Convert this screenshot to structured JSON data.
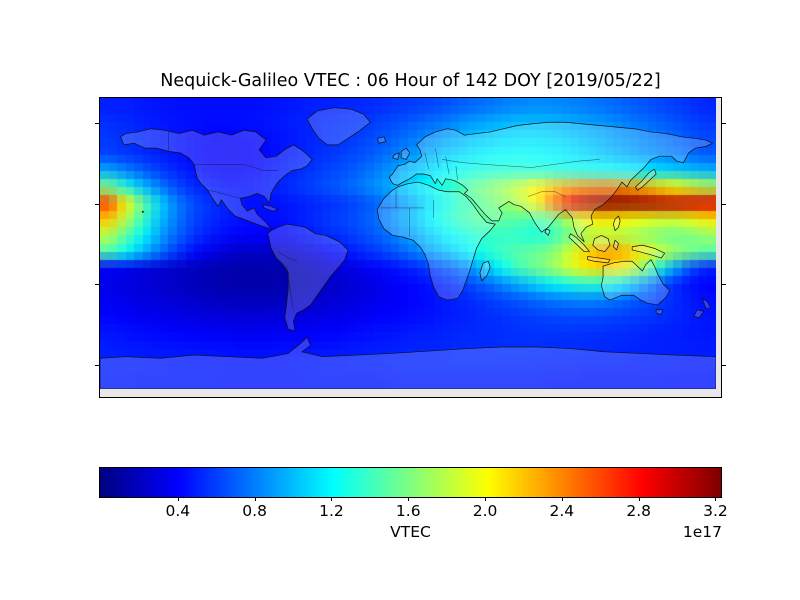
{
  "window": {
    "background": "#ffffff",
    "frame_color": "#000000"
  },
  "title": "Nequick-Galileo VTEC : 06 Hour of 142 DOY [2019/05/22]",
  "colorbar": {
    "label": "VTEC",
    "offset_text": "1e17",
    "tick_labels": [
      "0.4",
      "0.8",
      "1.2",
      "1.6",
      "2.0",
      "2.4",
      "2.8",
      "3.2"
    ],
    "tick_values": [
      0.4,
      0.8,
      1.2,
      1.6,
      2.0,
      2.4,
      2.8,
      3.2
    ]
  },
  "chart_data": {
    "type": "heatmap",
    "title": "Nequick-Galileo VTEC : 06 Hour of 142 DOY [2019/05/22]",
    "colormap": "jet",
    "colormap_stops": [
      "#00007f",
      "#0000ff",
      "#00ffff",
      "#7fff7f",
      "#ffff00",
      "#ff7f00",
      "#ff0000",
      "#7f0000"
    ],
    "basemap": "equirectangular world coastlines with country borders",
    "lon_range": [
      -180,
      180
    ],
    "lat_range": [
      90,
      -90
    ],
    "vmin": 0,
    "vmax": 3.234,
    "value_scale": "1e17",
    "colorbar_label": "VTEC",
    "colorbar_ticks": [
      0.4,
      0.8,
      1.2,
      1.6,
      2.0,
      2.4,
      2.8,
      3.2
    ],
    "colorbar_tick_labels": [
      "0.4",
      "0.8",
      "1.2",
      "1.6",
      "2.0",
      "2.4",
      "2.8",
      "3.2"
    ],
    "lon_col_start": -175,
    "lon_col_step": 10,
    "lat_row_centers": [
      85,
      75,
      65,
      55,
      45,
      35,
      25,
      15,
      5,
      -5,
      -15,
      -25,
      -35,
      -45,
      -55,
      -65,
      -75,
      -85
    ],
    "values_1e17": [
      [
        0.5,
        0.5,
        0.48,
        0.46,
        0.45,
        0.45,
        0.44,
        0.44,
        0.44,
        0.45,
        0.46,
        0.48,
        0.5,
        0.5,
        0.52,
        0.53,
        0.55,
        0.58,
        0.6,
        0.63,
        0.67,
        0.72,
        0.76,
        0.8,
        0.83,
        0.85,
        0.84,
        0.82,
        0.79,
        0.76,
        0.72,
        0.68,
        0.64,
        0.6,
        0.56,
        0.52
      ],
      [
        0.55,
        0.53,
        0.5,
        0.48,
        0.46,
        0.45,
        0.44,
        0.44,
        0.45,
        0.46,
        0.48,
        0.5,
        0.52,
        0.54,
        0.56,
        0.58,
        0.62,
        0.66,
        0.71,
        0.76,
        0.82,
        0.88,
        0.93,
        0.97,
        1.0,
        1.0,
        0.98,
        0.95,
        0.91,
        0.87,
        0.82,
        0.77,
        0.72,
        0.67,
        0.62,
        0.58
      ],
      [
        0.58,
        0.55,
        0.52,
        0.49,
        0.46,
        0.43,
        0.41,
        0.4,
        0.41,
        0.43,
        0.46,
        0.49,
        0.52,
        0.55,
        0.58,
        0.62,
        0.67,
        0.73,
        0.8,
        0.87,
        0.94,
        1.01,
        1.06,
        1.1,
        1.12,
        1.12,
        1.1,
        1.06,
        1.01,
        0.96,
        0.9,
        0.85,
        0.79,
        0.74,
        0.68,
        0.63
      ],
      [
        0.62,
        0.58,
        0.54,
        0.5,
        0.46,
        0.42,
        0.39,
        0.38,
        0.39,
        0.42,
        0.46,
        0.5,
        0.54,
        0.58,
        0.62,
        0.67,
        0.74,
        0.82,
        0.91,
        1.0,
        1.08,
        1.14,
        1.19,
        1.22,
        1.23,
        1.22,
        1.19,
        1.15,
        1.1,
        1.04,
        0.98,
        0.92,
        0.87,
        0.82,
        0.76,
        0.69
      ],
      [
        0.95,
        0.82,
        0.7,
        0.6,
        0.52,
        0.46,
        0.42,
        0.4,
        0.41,
        0.44,
        0.48,
        0.53,
        0.58,
        0.63,
        0.68,
        0.75,
        0.84,
        0.94,
        1.05,
        1.14,
        1.22,
        1.28,
        1.32,
        1.34,
        1.34,
        1.33,
        1.31,
        1.29,
        1.27,
        1.25,
        1.22,
        1.18,
        1.13,
        1.07,
        1.02,
        0.98
      ],
      [
        1.6,
        1.3,
        1.02,
        0.8,
        0.64,
        0.54,
        0.48,
        0.45,
        0.45,
        0.48,
        0.52,
        0.57,
        0.62,
        0.67,
        0.73,
        0.81,
        0.91,
        1.02,
        1.14,
        1.26,
        1.38,
        1.5,
        1.62,
        1.74,
        1.88,
        2.04,
        2.2,
        2.32,
        2.4,
        2.42,
        2.38,
        2.28,
        2.15,
        2.02,
        1.9,
        1.78
      ],
      [
        2.6,
        2.05,
        1.52,
        1.08,
        0.8,
        0.64,
        0.55,
        0.5,
        0.46,
        0.45,
        0.46,
        0.49,
        0.52,
        0.56,
        0.6,
        0.66,
        0.75,
        0.86,
        1.0,
        1.15,
        1.3,
        1.44,
        1.55,
        1.65,
        1.8,
        2.05,
        2.45,
        2.9,
        3.12,
        3.2,
        3.2,
        3.16,
        3.1,
        3.05,
        3.0,
        2.95
      ],
      [
        2.2,
        1.8,
        1.4,
        1.02,
        0.78,
        0.62,
        0.54,
        0.48,
        0.45,
        0.44,
        0.45,
        0.49,
        0.54,
        0.59,
        0.64,
        0.7,
        0.79,
        0.92,
        1.07,
        1.22,
        1.36,
        1.47,
        1.53,
        1.52,
        1.48,
        1.45,
        1.55,
        1.82,
        2.05,
        2.1,
        2.05,
        1.98,
        1.92,
        1.9,
        1.96,
        2.08
      ],
      [
        1.8,
        1.5,
        1.2,
        0.93,
        0.72,
        0.57,
        0.48,
        0.43,
        0.4,
        0.39,
        0.4,
        0.44,
        0.49,
        0.54,
        0.59,
        0.65,
        0.73,
        0.84,
        0.96,
        1.09,
        1.21,
        1.31,
        1.37,
        1.38,
        1.35,
        1.31,
        1.38,
        1.58,
        1.77,
        1.82,
        1.78,
        1.7,
        1.62,
        1.56,
        1.6,
        1.7
      ],
      [
        1.45,
        1.22,
        0.98,
        0.76,
        0.57,
        0.43,
        0.35,
        0.25,
        0.23,
        0.22,
        0.23,
        0.26,
        0.33,
        0.4,
        0.47,
        0.54,
        0.61,
        0.7,
        0.81,
        0.93,
        1.05,
        1.18,
        1.31,
        1.42,
        1.5,
        1.55,
        1.65,
        1.9,
        2.18,
        2.32,
        2.28,
        2.1,
        1.9,
        1.72,
        1.58,
        1.48
      ],
      [
        0.38,
        0.34,
        0.3,
        0.27,
        0.23,
        0.2,
        0.17,
        0.15,
        0.14,
        0.14,
        0.15,
        0.18,
        0.22,
        0.27,
        0.32,
        0.37,
        0.42,
        0.47,
        0.53,
        0.61,
        0.71,
        0.85,
        1.03,
        1.23,
        1.43,
        1.57,
        1.71,
        1.91,
        2.09,
        2.15,
        2.07,
        1.75,
        1.35,
        0.95,
        0.65,
        0.5
      ],
      [
        0.34,
        0.31,
        0.28,
        0.25,
        0.22,
        0.19,
        0.16,
        0.14,
        0.13,
        0.13,
        0.14,
        0.16,
        0.19,
        0.23,
        0.27,
        0.31,
        0.35,
        0.39,
        0.43,
        0.48,
        0.54,
        0.62,
        0.72,
        0.84,
        0.97,
        1.08,
        1.18,
        1.28,
        1.34,
        1.3,
        1.15,
        0.95,
        0.72,
        0.55,
        0.45,
        0.4
      ],
      [
        0.36,
        0.34,
        0.31,
        0.29,
        0.26,
        0.24,
        0.22,
        0.2,
        0.19,
        0.19,
        0.2,
        0.22,
        0.24,
        0.27,
        0.3,
        0.33,
        0.36,
        0.39,
        0.42,
        0.45,
        0.49,
        0.53,
        0.58,
        0.63,
        0.68,
        0.73,
        0.78,
        0.81,
        0.83,
        0.8,
        0.74,
        0.67,
        0.6,
        0.54,
        0.48,
        0.44
      ],
      [
        0.41,
        0.39,
        0.37,
        0.35,
        0.33,
        0.31,
        0.29,
        0.28,
        0.27,
        0.27,
        0.28,
        0.29,
        0.31,
        0.33,
        0.35,
        0.37,
        0.4,
        0.42,
        0.44,
        0.46,
        0.49,
        0.51,
        0.54,
        0.56,
        0.59,
        0.61,
        0.63,
        0.64,
        0.64,
        0.63,
        0.61,
        0.59,
        0.56,
        0.53,
        0.5,
        0.46
      ],
      [
        0.46,
        0.45,
        0.43,
        0.42,
        0.4,
        0.39,
        0.38,
        0.37,
        0.36,
        0.36,
        0.37,
        0.38,
        0.39,
        0.4,
        0.42,
        0.44,
        0.46,
        0.47,
        0.49,
        0.5,
        0.52,
        0.53,
        0.54,
        0.55,
        0.56,
        0.57,
        0.57,
        0.57,
        0.56,
        0.55,
        0.54,
        0.53,
        0.51,
        0.5,
        0.48,
        0.47
      ],
      [
        0.5,
        0.49,
        0.48,
        0.47,
        0.47,
        0.46,
        0.45,
        0.45,
        0.44,
        0.44,
        0.45,
        0.45,
        0.46,
        0.47,
        0.48,
        0.49,
        0.5,
        0.51,
        0.52,
        0.52,
        0.53,
        0.54,
        0.54,
        0.55,
        0.55,
        0.55,
        0.54,
        0.54,
        0.53,
        0.53,
        0.52,
        0.51,
        0.51,
        0.5,
        0.5,
        0.49
      ],
      [
        0.51,
        0.51,
        0.5,
        0.5,
        0.49,
        0.49,
        0.49,
        0.48,
        0.48,
        0.48,
        0.48,
        0.49,
        0.49,
        0.5,
        0.5,
        0.51,
        0.51,
        0.52,
        0.52,
        0.52,
        0.53,
        0.53,
        0.53,
        0.53,
        0.53,
        0.52,
        0.52,
        0.52,
        0.51,
        0.51,
        0.51,
        0.5,
        0.5,
        0.5,
        0.49,
        0.49
      ],
      [
        0.49,
        0.49,
        0.48,
        0.48,
        0.48,
        0.48,
        0.48,
        0.47,
        0.47,
        0.47,
        0.47,
        0.47,
        0.48,
        0.48,
        0.48,
        0.48,
        0.48,
        0.49,
        0.49,
        0.49,
        0.49,
        0.49,
        0.49,
        0.49,
        0.49,
        0.49,
        0.48,
        0.48,
        0.48,
        0.48,
        0.48,
        0.48,
        0.48,
        0.47,
        0.47,
        0.47
      ]
    ]
  }
}
